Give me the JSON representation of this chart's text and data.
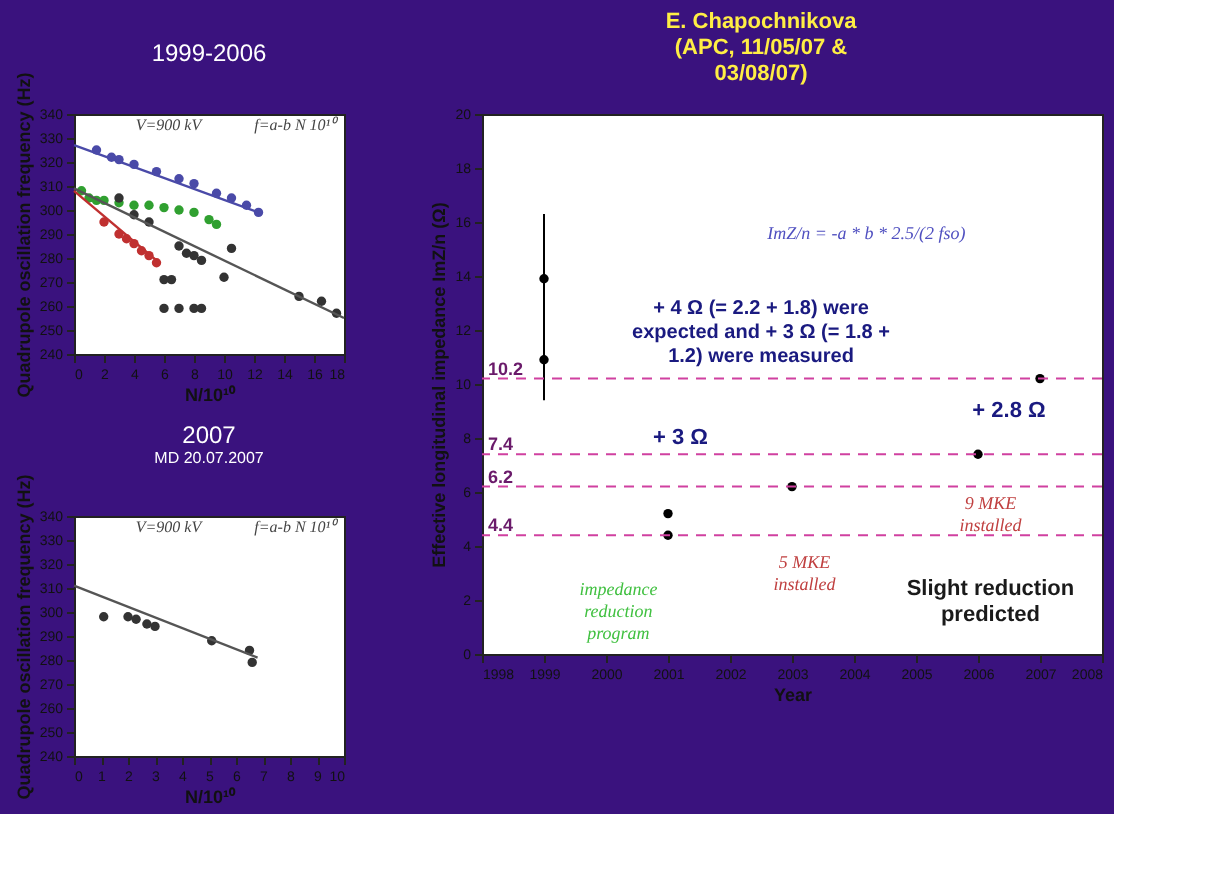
{
  "chart_data": [
    {
      "type": "scatter",
      "title": "1999-2006",
      "xlabel": "N/10¹⁰",
      "ylabel": "Quadrupole oscillation frequency (Hz)",
      "xlim": [
        0,
        18
      ],
      "ylim": [
        240,
        340
      ],
      "xticks": [
        0,
        2,
        4,
        6,
        8,
        10,
        12,
        14,
        16,
        18
      ],
      "yticks": [
        240,
        250,
        260,
        270,
        280,
        290,
        300,
        310,
        320,
        330,
        340
      ],
      "marker": "circle",
      "annotations": [
        "V=900 kV",
        "f=a-b N 10¹⁰"
      ],
      "series": [
        {
          "color": "#4a4aa8",
          "x": [
            1.5,
            2.5,
            3,
            4,
            5.5,
            7,
            8,
            9.5,
            10.5,
            11.5,
            12.3
          ],
          "values": [
            325,
            322,
            321,
            319,
            316,
            313,
            311,
            307,
            305,
            302,
            299
          ]
        },
        {
          "color": "#30a030",
          "x": [
            0.5,
            1,
            1.5,
            2,
            3,
            4,
            5,
            6,
            7,
            8,
            9,
            9.5
          ],
          "values": [
            308,
            305,
            304,
            304,
            303,
            302,
            302,
            301,
            300,
            299,
            296,
            294
          ]
        },
        {
          "color": "#c03030",
          "x": [
            2,
            3,
            3.5,
            4,
            4.5,
            5,
            5.5
          ],
          "values": [
            295,
            290,
            288,
            286,
            283,
            281,
            278
          ]
        },
        {
          "color": "#333333",
          "x": [
            3,
            4,
            5,
            6,
            6.5,
            7,
            7.5,
            8,
            8.5,
            10,
            10.5,
            15,
            16.5,
            17.5,
            6,
            7,
            8,
            8.5
          ],
          "values": [
            305,
            298,
            295,
            271,
            271,
            285,
            282,
            281,
            279,
            272,
            284,
            264,
            262,
            257,
            259,
            259,
            259,
            259
          ]
        },
        {
          "type": "line",
          "marker": "none",
          "color": "#4a4aa8",
          "x": [
            0,
            12.3
          ],
          "values": [
            327,
            299
          ]
        },
        {
          "type": "line",
          "marker": "none",
          "color": "#c03030",
          "x": [
            0,
            5.5
          ],
          "values": [
            308,
            279
          ]
        },
        {
          "type": "line",
          "marker": "none",
          "color": "#555555",
          "x": [
            0,
            18
          ],
          "values": [
            309,
            255
          ]
        }
      ]
    },
    {
      "type": "scatter",
      "title": "2007",
      "subtitle": "MD 20.07.2007",
      "xlabel": "N/10¹⁰",
      "ylabel": "Quadrupole oscillation frequency (Hz)",
      "xlim": [
        0,
        10
      ],
      "ylim": [
        240,
        340
      ],
      "xticks": [
        0,
        1,
        2,
        3,
        4,
        5,
        6,
        7,
        8,
        9,
        10
      ],
      "yticks": [
        240,
        250,
        260,
        270,
        280,
        290,
        300,
        310,
        320,
        330,
        340
      ],
      "marker": "circle",
      "annotations": [
        "V=900 kV",
        "f=a-b N 10¹⁰"
      ],
      "series": [
        {
          "color": "#333333",
          "x": [
            1.1,
            2,
            2.3,
            2.7,
            3,
            5.1,
            6.5,
            6.6
          ],
          "values": [
            298,
            298,
            297,
            295,
            294,
            288,
            284,
            279
          ]
        },
        {
          "type": "line",
          "marker": "none",
          "color": "#555555",
          "x": [
            0,
            6.8
          ],
          "values": [
            311,
            281
          ]
        }
      ]
    },
    {
      "type": "scatter",
      "xlabel": "Year",
      "ylabel": "Effective longitudinal impedance ImZ/n (Ω)",
      "xlim": [
        1998,
        2008
      ],
      "ylim": [
        0,
        20
      ],
      "xticks": [
        1998,
        1999,
        2000,
        2001,
        2002,
        2003,
        2004,
        2005,
        2006,
        2007,
        2008
      ],
      "yticks": [
        0,
        2,
        4,
        6,
        8,
        10,
        12,
        14,
        16,
        18,
        20
      ],
      "marker": "circle",
      "series": [
        {
          "color": "#000000",
          "x": [
            1999,
            1999,
            2001,
            2001,
            2003,
            2006,
            2007
          ],
          "values": [
            13.9,
            10.9,
            5.2,
            4.4,
            6.2,
            7.4,
            10.2
          ],
          "errors": [
            [
              9.4,
              16.3
            ],
            null,
            null,
            null,
            null,
            null,
            null
          ]
        }
      ],
      "ref_lines": [
        {
          "axis": "y",
          "value": 10.2,
          "label": "10.2",
          "color": "#d040a0",
          "line_style": "dashed"
        },
        {
          "axis": "y",
          "value": 7.4,
          "label": "7.4",
          "color": "#d040a0",
          "line_style": "dashed"
        },
        {
          "axis": "y",
          "value": 6.2,
          "label": "6.2",
          "color": "#d040a0",
          "line_style": "dashed"
        },
        {
          "axis": "y",
          "value": 4.4,
          "label": "4.4",
          "color": "#d040a0",
          "line_style": "dashed"
        }
      ],
      "annotations": [
        "E. Chapochnikova (APC, 11/05/07 & 03/08/07)",
        "ImZ/n = -a * b * 2.5/(2 fso)",
        "+ 4 Ω (= 2.2 + 1.8) were expected and + 3 Ω (= 1.8 + 1.2) were measured",
        "+ 3 Ω",
        "+ 2.8 Ω",
        "5 MKE installed",
        "9 MKE installed",
        "impedance reduction program",
        "Slight reduction predicted"
      ]
    }
  ]
}
